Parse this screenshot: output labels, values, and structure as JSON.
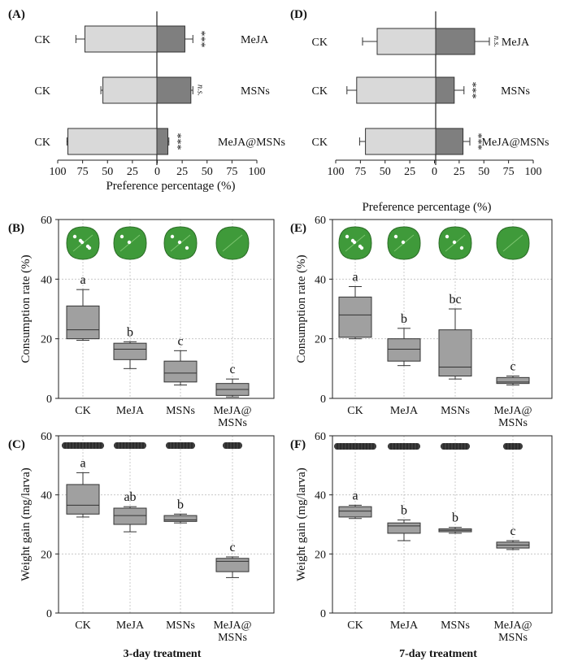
{
  "panels": {
    "A": {
      "label": "(A)",
      "type": "bar",
      "xlabel": "Preference percentage (%)",
      "ticks": [
        "100",
        "75",
        "50",
        "25",
        "0",
        "25",
        "50",
        "75",
        "100"
      ],
      "rows": [
        {
          "left": "CK",
          "right": "MeJA",
          "ck": 72,
          "ck_err": 9,
          "tr": 28,
          "tr_err": 8,
          "sig": "***"
        },
        {
          "left": "CK",
          "right": "MSNs",
          "ck": 54,
          "ck_err": 2,
          "tr": 34,
          "tr_err": 2,
          "sig": "n.s."
        },
        {
          "left": "CK",
          "right": "MeJA@MSNs",
          "ck": 89,
          "ck_err": 1,
          "tr": 11,
          "tr_err": 1,
          "sig": "***"
        }
      ]
    },
    "D": {
      "label": "(D)",
      "type": "bar",
      "xlabel": "Preference percentage (%)",
      "ticks": [
        "100",
        "75",
        "50",
        "25",
        "0",
        "25",
        "50",
        "75",
        "100"
      ],
      "rows": [
        {
          "left": "CK",
          "right": "MeJA",
          "ck": 60,
          "ck_err": 15,
          "tr": 40,
          "tr_err": 15,
          "sig": "n.s."
        },
        {
          "left": "CK",
          "right": "MSNs",
          "ck": 81,
          "ck_err": 10,
          "tr": 19,
          "tr_err": 10,
          "sig": "***"
        },
        {
          "left": "CK",
          "right": "MeJA@MSNs",
          "ck": 72,
          "ck_err": 6,
          "tr": 28,
          "tr_err": 7,
          "sig": "***"
        }
      ]
    },
    "B": {
      "label": "(B)",
      "type": "box",
      "ylabel": "Consumption rate  (%)",
      "ylim": [
        0,
        60
      ],
      "yticks": [
        "0",
        "20",
        "40",
        "60"
      ],
      "categories": [
        "CK",
        "MeJA",
        "MSNs",
        "MeJA@\nMSNs"
      ],
      "boxes": [
        {
          "min": 19.5,
          "q1": 20,
          "med": 23,
          "q3": 31,
          "max": 36.5,
          "letter": "a"
        },
        {
          "min": 10,
          "q1": 13,
          "med": 16.5,
          "q3": 18.5,
          "max": 19,
          "letter": "b"
        },
        {
          "min": 4.5,
          "q1": 5.5,
          "med": 8.5,
          "q3": 12.5,
          "max": 16,
          "letter": "c"
        },
        {
          "min": 0.5,
          "q1": 1,
          "med": 3,
          "q3": 5,
          "max": 6.5,
          "letter": "c"
        }
      ]
    },
    "E": {
      "label": "(E)",
      "type": "box",
      "ylabel": "Consumption rate  (%)",
      "ylim": [
        0,
        60
      ],
      "yticks": [
        "0",
        "20",
        "40",
        "60"
      ],
      "categories": [
        "CK",
        "MeJA",
        "MSNs",
        "MeJA@\nMSNs"
      ],
      "boxes": [
        {
          "min": 20,
          "q1": 20.5,
          "med": 28,
          "q3": 34,
          "max": 37.5,
          "letter": "a"
        },
        {
          "min": 11,
          "q1": 12.5,
          "med": 16.5,
          "q3": 20,
          "max": 23.5,
          "letter": "b"
        },
        {
          "min": 6.5,
          "q1": 7.5,
          "med": 10.5,
          "q3": 23,
          "max": 30,
          "letter": "bc"
        },
        {
          "min": 4.5,
          "q1": 5,
          "med": 5.5,
          "q3": 7,
          "max": 7.5,
          "letter": "c"
        }
      ]
    },
    "C": {
      "label": "(C)",
      "type": "box",
      "ylabel": "Weight gain  (mg/larva)",
      "ylim": [
        0,
        60
      ],
      "yticks": [
        "0",
        "20",
        "40",
        "60"
      ],
      "categories": [
        "CK",
        "MeJA",
        "MSNs",
        "MeJA@\nMSNs"
      ],
      "boxes": [
        {
          "min": 32.5,
          "q1": 33.5,
          "med": 36.5,
          "q3": 43.5,
          "max": 47.5,
          "letter": "a"
        },
        {
          "min": 27.5,
          "q1": 30,
          "med": 33,
          "q3": 35.5,
          "max": 36,
          "letter": "ab"
        },
        {
          "min": 30.5,
          "q1": 31,
          "med": 31.5,
          "q3": 33,
          "max": 33.5,
          "letter": "b"
        },
        {
          "min": 12,
          "q1": 14,
          "med": 17.5,
          "q3": 18.5,
          "max": 19,
          "letter": "c"
        }
      ],
      "footer": "3-day treatment"
    },
    "F": {
      "label": "(F)",
      "type": "box",
      "ylabel": "Weight gain  (mg/larva)",
      "ylim": [
        0,
        60
      ],
      "yticks": [
        "0",
        "20",
        "40",
        "60"
      ],
      "categories": [
        "CK",
        "MeJA",
        "MSNs",
        "MeJA@\nMSNs"
      ],
      "boxes": [
        {
          "min": 32,
          "q1": 32.5,
          "med": 34.5,
          "q3": 36,
          "max": 36.5,
          "letter": "a"
        },
        {
          "min": 24.5,
          "q1": 27,
          "med": 29.5,
          "q3": 30.5,
          "max": 31.5,
          "letter": "b"
        },
        {
          "min": 27,
          "q1": 27.5,
          "med": 28,
          "q3": 28.5,
          "max": 29,
          "letter": "b"
        },
        {
          "min": 21.5,
          "q1": 22,
          "med": 23,
          "q3": 24,
          "max": 24.5,
          "letter": "c"
        }
      ],
      "footer": "7-day treatment"
    }
  },
  "colors": {
    "ck_bar": "#d9d9d9",
    "tr_bar": "#7f7f7f",
    "box": "#a0a0a0",
    "leaf": "#3f9a3a",
    "larva": "#2c2c2c",
    "grid": "#bfbfbf"
  },
  "chart_data": [
    {
      "panel": "A",
      "type": "bar",
      "xlabel": "Preference percentage (%)",
      "categories": [
        "MeJA",
        "MSNs",
        "MeJA@MSNs"
      ],
      "series": [
        {
          "name": "CK",
          "values": [
            72,
            54,
            89
          ]
        },
        {
          "values": [
            28,
            34,
            11
          ]
        }
      ],
      "significance": [
        "***",
        "n.s.",
        "***"
      ],
      "xlim": [
        -100,
        100
      ]
    },
    {
      "panel": "D",
      "type": "bar",
      "xlabel": "Preference percentage (%)",
      "categories": [
        "MeJA",
        "MSNs",
        "MeJA@MSNs"
      ],
      "series": [
        {
          "name": "CK",
          "values": [
            60,
            81,
            72
          ]
        },
        {
          "values": [
            40,
            19,
            28
          ]
        }
      ],
      "significance": [
        "n.s.",
        "***",
        "***"
      ],
      "xlim": [
        -100,
        100
      ]
    },
    {
      "panel": "B",
      "type": "box",
      "ylabel": "Consumption rate (%)",
      "ylim": [
        0,
        60
      ],
      "categories": [
        "CK",
        "MeJA",
        "MSNs",
        "MeJA@MSNs"
      ],
      "medians": [
        23,
        16.5,
        8.5,
        3
      ],
      "letters": [
        "a",
        "b",
        "c",
        "c"
      ]
    },
    {
      "panel": "E",
      "type": "box",
      "ylabel": "Consumption rate (%)",
      "ylim": [
        0,
        60
      ],
      "categories": [
        "CK",
        "MeJA",
        "MSNs",
        "MeJA@MSNs"
      ],
      "medians": [
        28,
        16.5,
        10.5,
        5.5
      ],
      "letters": [
        "a",
        "b",
        "bc",
        "c"
      ]
    },
    {
      "panel": "C",
      "type": "box",
      "ylabel": "Weight gain (mg/larva)",
      "ylim": [
        0,
        60
      ],
      "categories": [
        "CK",
        "MeJA",
        "MSNs",
        "MeJA@MSNs"
      ],
      "medians": [
        36.5,
        33,
        31.5,
        17.5
      ],
      "letters": [
        "a",
        "ab",
        "b",
        "c"
      ]
    },
    {
      "panel": "F",
      "type": "box",
      "ylabel": "Weight gain (mg/larva)",
      "ylim": [
        0,
        60
      ],
      "categories": [
        "CK",
        "MeJA",
        "MSNs",
        "MeJA@MSNs"
      ],
      "medians": [
        34.5,
        29.5,
        28,
        23
      ],
      "letters": [
        "a",
        "b",
        "b",
        "c"
      ]
    }
  ]
}
